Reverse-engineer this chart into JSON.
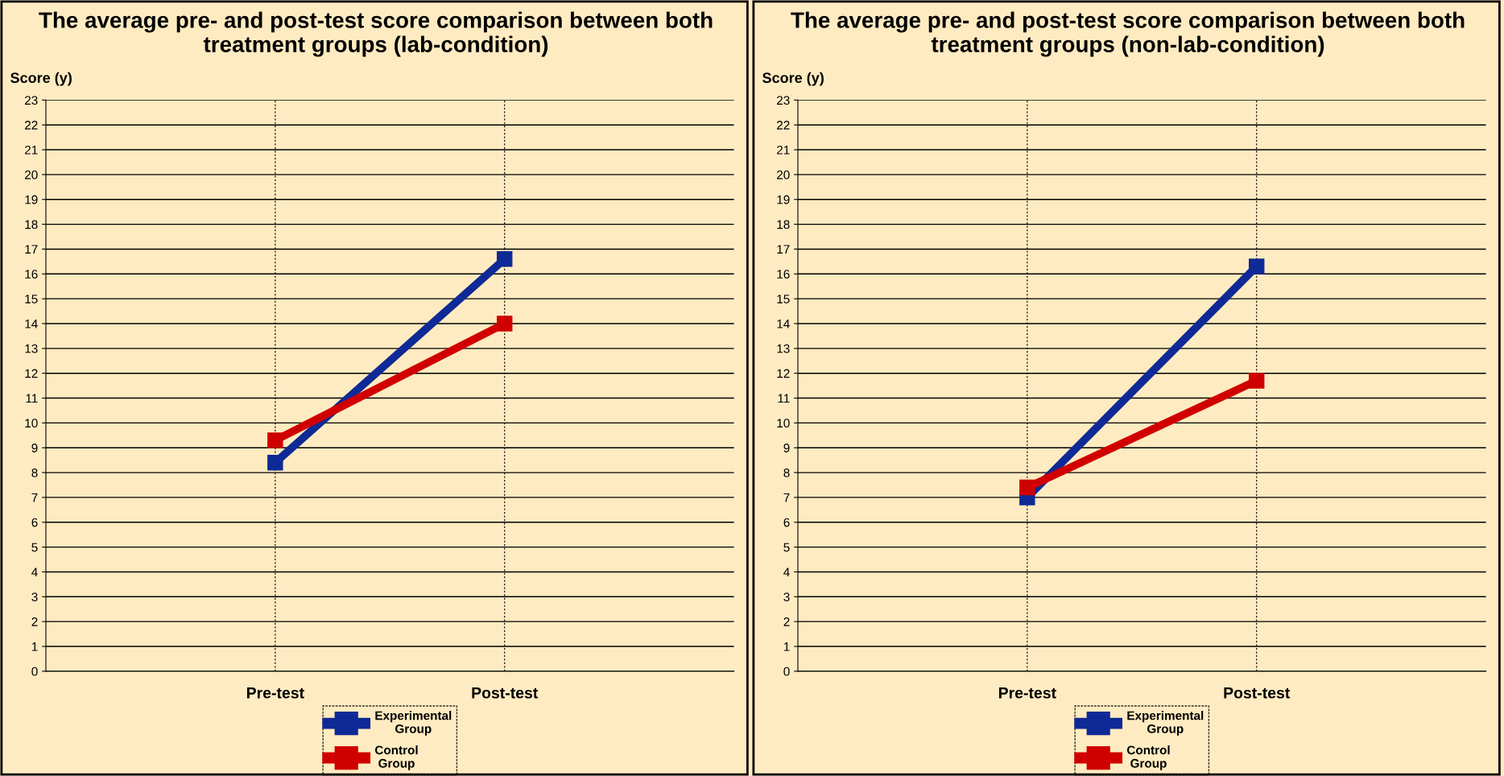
{
  "chart_data": [
    {
      "type": "line",
      "title": "The average pre- and post-test score comparison between both treatment groups (lab-condition)",
      "ylabel": "Score (y)",
      "categories": [
        "Pre-test",
        "Post-test"
      ],
      "series": [
        {
          "name": "Experimental Group",
          "color": "#0f2a96",
          "values": [
            8.4,
            16.6
          ]
        },
        {
          "name": "Control Group",
          "color": "#d00000",
          "values": [
            9.3,
            14.0
          ]
        }
      ],
      "ylim": [
        0,
        23
      ],
      "yticks": [
        0,
        1,
        2,
        3,
        4,
        5,
        6,
        7,
        8,
        9,
        10,
        11,
        12,
        13,
        14,
        15,
        16,
        17,
        18,
        19,
        20,
        21,
        22,
        23
      ],
      "grid": true,
      "legend": "bottom",
      "marker": "square",
      "line_style": "solid"
    },
    {
      "type": "line",
      "title": "The average pre- and post-test score comparison between both treatment groups (non-lab-condition)",
      "ylabel": "Score (y)",
      "categories": [
        "Pre-test",
        "Post-test"
      ],
      "series": [
        {
          "name": "Experimental Group",
          "color": "#0f2a96",
          "values": [
            7.0,
            16.3
          ]
        },
        {
          "name": "Control Group",
          "color": "#d00000",
          "values": [
            7.4,
            11.7
          ]
        }
      ],
      "ylim": [
        0,
        23
      ],
      "yticks": [
        0,
        1,
        2,
        3,
        4,
        5,
        6,
        7,
        8,
        9,
        10,
        11,
        12,
        13,
        14,
        15,
        16,
        17,
        18,
        19,
        20,
        21,
        22,
        23
      ],
      "grid": true,
      "legend": "bottom",
      "marker": "square",
      "line_style": "solid"
    }
  ]
}
